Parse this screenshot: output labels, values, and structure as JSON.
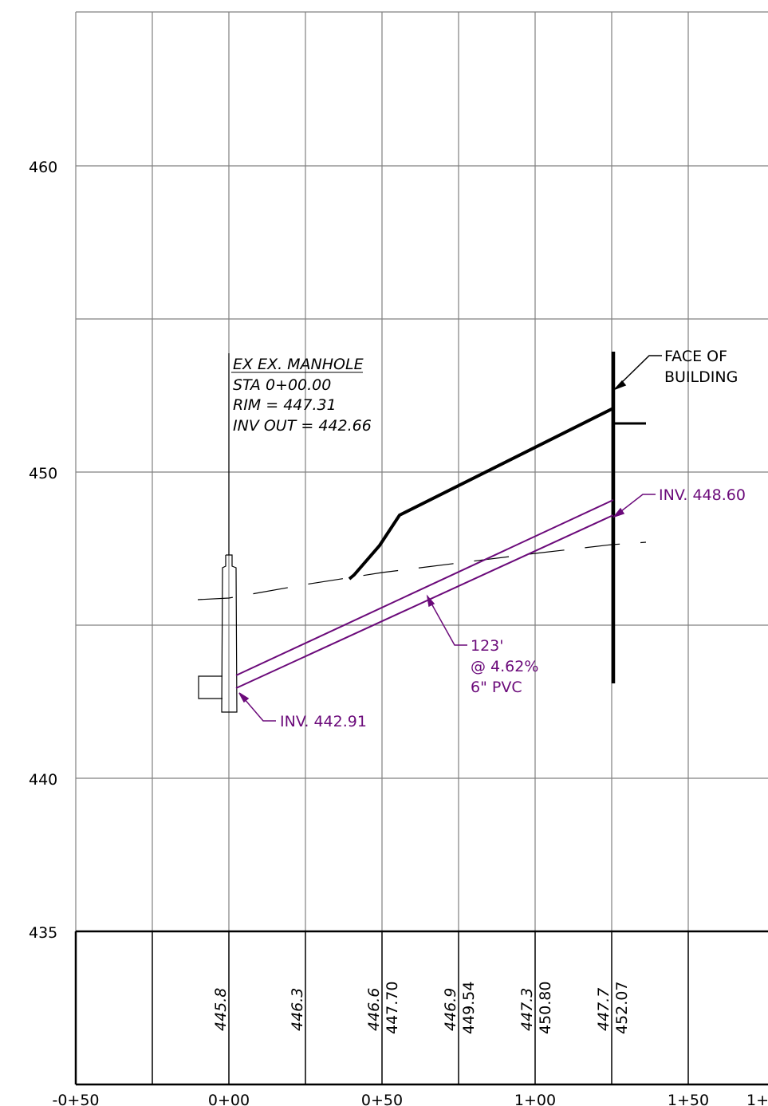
{
  "colors": {
    "grid": "#808080",
    "black": "#000000",
    "pipe": "#6b0a7a"
  },
  "axes": {
    "y_ticks": [
      "460",
      "450",
      "440",
      "435"
    ],
    "x_ticks": [
      "-0+50",
      "0+00",
      "0+50",
      "1+00",
      "1+50",
      "1+"
    ]
  },
  "manhole": {
    "title": "EX EX. MANHOLE",
    "sta": "STA 0+00.00",
    "rim": "RIM = 447.31",
    "inv_out": "INV OUT = 442.66"
  },
  "building": {
    "line1": "FACE OF",
    "line2": "BUILDING"
  },
  "pipe": {
    "inv_up": "INV. 448.60",
    "inv_down": "INV. 442.91",
    "length": "123'",
    "slope": "@ 4.62%",
    "material": "6\" PVC"
  },
  "table": {
    "existing": [
      "445.8",
      "446.3",
      "446.6",
      "446.9",
      "447.3",
      "447.7"
    ],
    "proposed": [
      "447.70",
      "449.54",
      "450.80",
      "452.07"
    ]
  }
}
